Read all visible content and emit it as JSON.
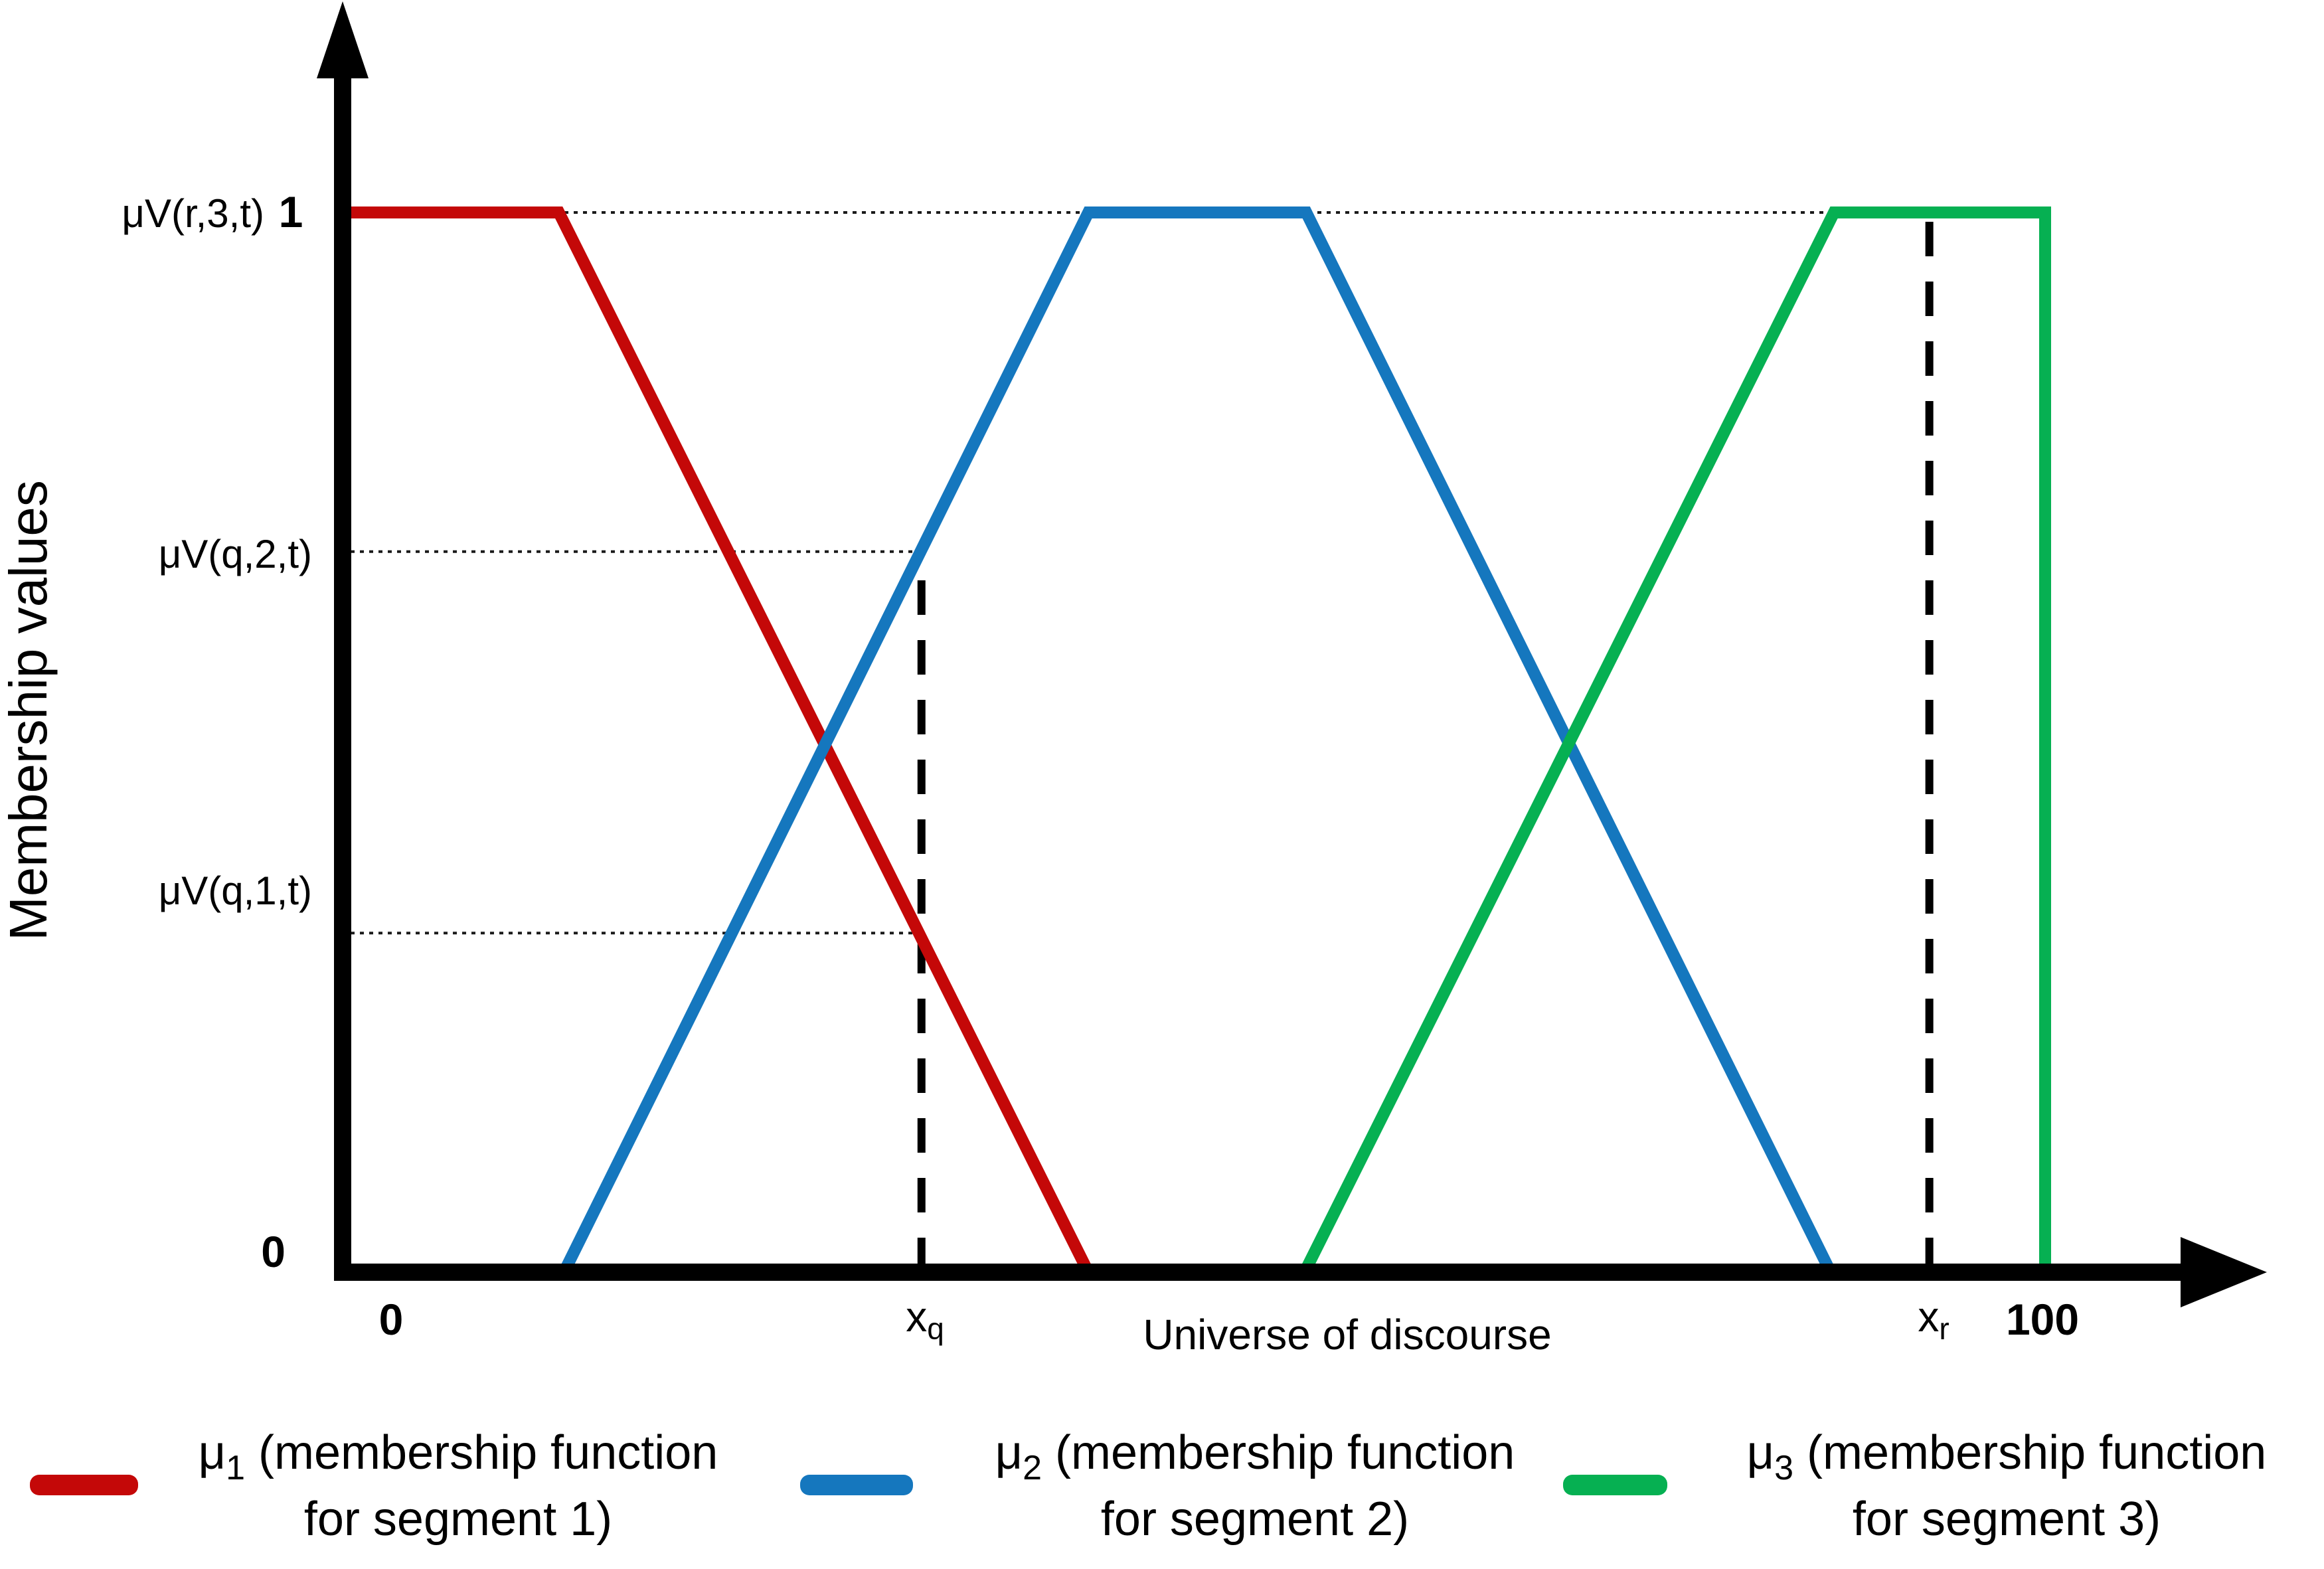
{
  "axes": {
    "y_title": "Membership values",
    "x_title": "Universe of discourse",
    "y_label_top": "μV(r,3,t)",
    "y_tick_one": "1",
    "y_label_mid": "μV(q,2,t)",
    "y_label_low": "μV(q,1,t)",
    "y_tick_zero": "0",
    "x_tick_zero": "0",
    "x_tick_q_base": "x",
    "x_tick_q_sub": "q",
    "x_tick_r_base": "x",
    "x_tick_r_sub": "r",
    "x_tick_max": "100"
  },
  "legend": {
    "items": [
      {
        "symbol": "μ",
        "sub": "1",
        "line1_rest": " (membership function",
        "line2": "for segment 1)",
        "color": "#c40808"
      },
      {
        "symbol": "μ",
        "sub": "2",
        "line1_rest": " (membership function",
        "line2": "for segment 2)",
        "color": "#1577be"
      },
      {
        "symbol": "μ",
        "sub": "3",
        "line1_rest": " (membership function",
        "line2": "for segment 3)",
        "color": "#06b052"
      }
    ]
  },
  "chart_data": {
    "type": "line",
    "title": "",
    "xlabel": "Universe of discourse",
    "ylabel": "Membership values",
    "x_range": [
      0,
      100
    ],
    "y_range": [
      0,
      1
    ],
    "grid": false,
    "legend_position": "bottom",
    "series": [
      {
        "name": "μ1 (membership function for segment 1)",
        "color": "#c40808",
        "shape": "trapezoid",
        "points": [
          [
            0,
            1
          ],
          [
            12.7,
            1
          ],
          [
            43.8,
            0
          ]
        ]
      },
      {
        "name": "μ2 (membership function for segment 2)",
        "color": "#1577be",
        "shape": "trapezoid",
        "points": [
          [
            13,
            0
          ],
          [
            43.8,
            1
          ],
          [
            56.6,
            1
          ],
          [
            87.4,
            0
          ]
        ]
      },
      {
        "name": "μ3 (membership function for segment 3)",
        "color": "#06b052",
        "shape": "trapezoid",
        "points": [
          [
            56.5,
            0
          ],
          [
            87.6,
            1
          ],
          [
            100,
            1
          ],
          [
            100,
            0
          ]
        ]
      }
    ],
    "crisp_inputs": [
      {
        "label": "xq",
        "x": 34,
        "top_membership": 0.68
      },
      {
        "label": "xr",
        "x": 93.2,
        "top_membership": 1
      }
    ],
    "guide_levels": [
      {
        "label": "μV(r,3,t)",
        "value": 1,
        "x_extent": 87.6
      },
      {
        "label": "μV(q,2,t)",
        "value": 0.68,
        "x_extent": 34
      },
      {
        "label": "μV(q,1,t)",
        "value": 0.32,
        "x_extent": 34
      }
    ]
  }
}
